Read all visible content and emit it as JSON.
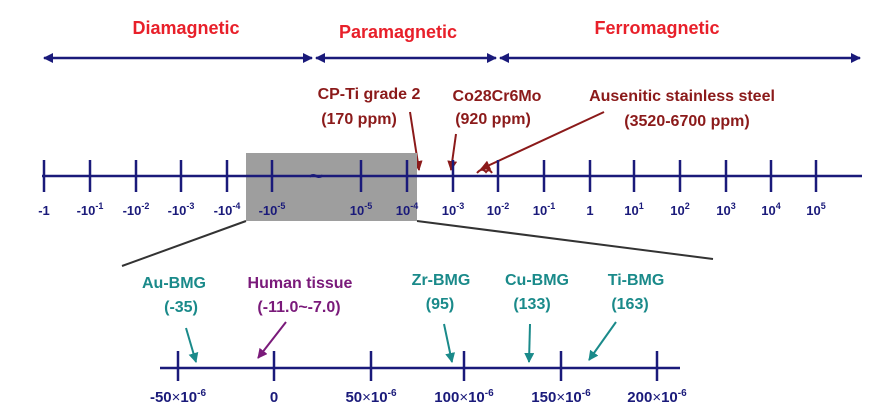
{
  "colors": {
    "axis": "#1a1a7a",
    "region_label": "#e8202a",
    "steel_label": "#8b1a1a",
    "teal": "#1a8a8a",
    "purple": "#7a1a7a",
    "shade": "#9e9e9e"
  },
  "regions": [
    {
      "label": "Diamagnetic"
    },
    {
      "label": "Paramagnetic"
    },
    {
      "label": "Ferromagnetic"
    }
  ],
  "top_ticks": [
    {
      "base": "-1",
      "exp": ""
    },
    {
      "base": "-10",
      "exp": "-1"
    },
    {
      "base": "-10",
      "exp": "-2"
    },
    {
      "base": "-10",
      "exp": "-3"
    },
    {
      "base": "-10",
      "exp": "-4"
    },
    {
      "base": "-10",
      "exp": "-5"
    },
    {
      "base": "10",
      "exp": "-5"
    },
    {
      "base": "10",
      "exp": "-4"
    },
    {
      "base": "10",
      "exp": "-3"
    },
    {
      "base": "10",
      "exp": "-2"
    },
    {
      "base": "10",
      "exp": "-1"
    },
    {
      "base": "1",
      "exp": ""
    },
    {
      "base": "10",
      "exp": "1"
    },
    {
      "base": "10",
      "exp": "2"
    },
    {
      "base": "10",
      "exp": "3"
    },
    {
      "base": "10",
      "exp": "4"
    },
    {
      "base": "10",
      "exp": "5"
    }
  ],
  "break_symbol": "~",
  "materials": [
    {
      "name": "CP-Ti grade 2",
      "value": "(170 ppm)"
    },
    {
      "name": "Co28Cr6Mo",
      "value": "(920 ppm)"
    },
    {
      "name": "Ausenitic stainless steel",
      "value": "(3520-6700 ppm)"
    }
  ],
  "alloys": [
    {
      "name": "Au-BMG",
      "value": "(-35)"
    },
    {
      "name": "Human tissue",
      "value": "(-11.0~-7.0)"
    },
    {
      "name": "Zr-BMG",
      "value": "(95)"
    },
    {
      "name": "Cu-BMG",
      "value": "(133)"
    },
    {
      "name": "Ti-BMG",
      "value": "(163)"
    }
  ],
  "bottom_ticks": [
    {
      "num": "-50",
      "times": "×",
      "base": "10",
      "exp": "-6"
    },
    {
      "num": "0",
      "times": "",
      "base": "",
      "exp": ""
    },
    {
      "num": "50",
      "times": "×",
      "base": "10",
      "exp": "-6"
    },
    {
      "num": "100",
      "times": "×",
      "base": "10",
      "exp": "-6"
    },
    {
      "num": "150",
      "times": "×",
      "base": "10",
      "exp": "-6"
    },
    {
      "num": "200",
      "times": "×",
      "base": "10",
      "exp": "-6"
    }
  ]
}
